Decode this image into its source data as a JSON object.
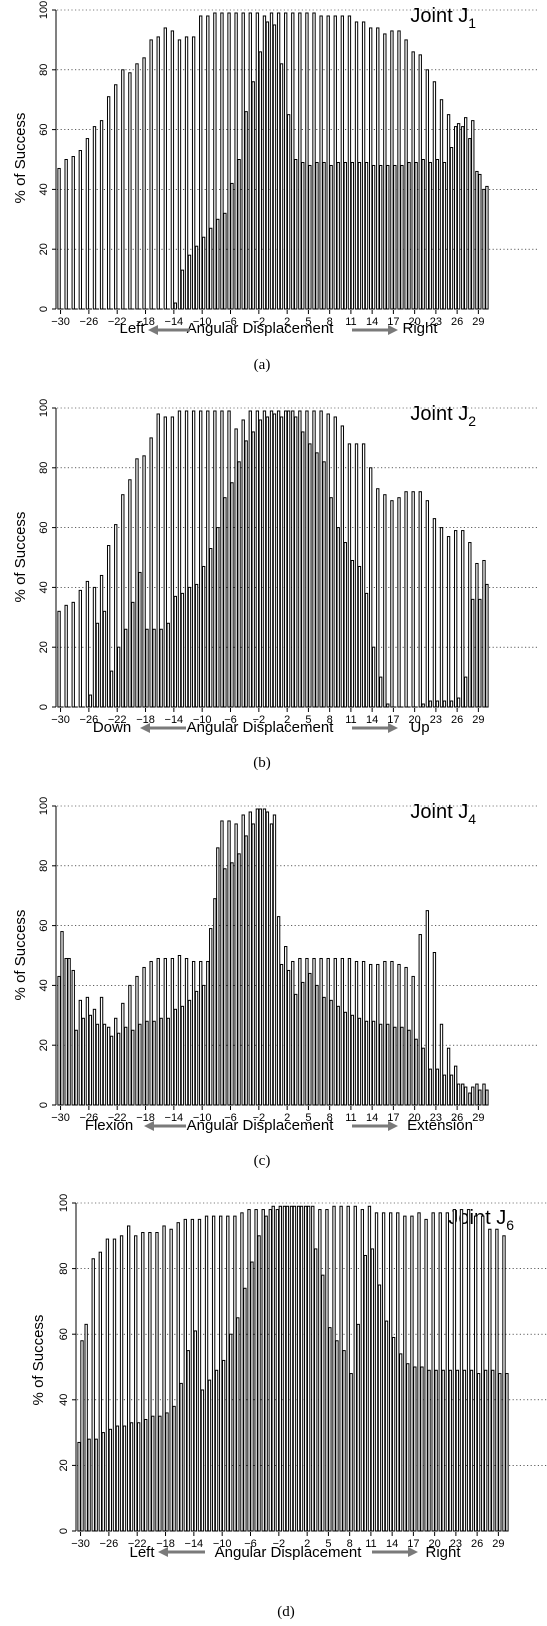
{
  "chart_data": [
    {
      "type": "bar",
      "caption": "(a)",
      "title": "Joint J",
      "title_sub": "1",
      "ylabel": "% of Success",
      "xlabel_left": "Left",
      "xlabel_center": "Angular Displacement",
      "xlabel_right": "Right",
      "ylim": [
        0,
        100
      ],
      "yticks": [
        0,
        20,
        40,
        60,
        80,
        100
      ],
      "x": [
        -30,
        -29,
        -28,
        -27,
        -26,
        -25,
        -24,
        -23,
        -22,
        -21,
        -20,
        -19,
        -18,
        -17,
        -16,
        -15,
        -14,
        -13,
        -12,
        -11,
        -10,
        -9,
        -8,
        -7,
        -6,
        -5,
        -4,
        -3,
        -2,
        -1,
        0,
        1,
        2,
        3,
        4,
        5,
        6,
        7,
        8,
        9,
        10,
        11,
        12,
        13,
        14,
        15,
        16,
        17,
        18,
        19,
        20,
        21,
        22,
        23,
        24,
        25,
        26,
        27,
        28,
        29,
        30
      ],
      "xtick_labels": [
        "-30",
        "-26",
        "-22",
        "-18",
        "-14",
        "-10",
        "-6",
        "-2",
        "2",
        "5",
        "8",
        "11",
        "14",
        "17",
        "20",
        "23",
        "26",
        "29"
      ],
      "series": [
        {
          "values": [
            47,
            50,
            51,
            53,
            57,
            61,
            63,
            71,
            75,
            80,
            79,
            82,
            84,
            90,
            91,
            94,
            93,
            90,
            91,
            91,
            98,
            98,
            99,
            99,
            99,
            99,
            99,
            99,
            99,
            98,
            99,
            99,
            99,
            99,
            99,
            99,
            99,
            98,
            98,
            98,
            98,
            98,
            96,
            96,
            94,
            94,
            92,
            93,
            93,
            90,
            86,
            85,
            80,
            76,
            70,
            65,
            61,
            61,
            57,
            46,
            40
          ]
        },
        {
          "values": [
            0,
            0,
            0,
            0,
            0,
            0,
            0,
            0,
            0,
            0,
            0,
            0,
            0,
            0,
            0,
            0,
            2,
            13,
            18,
            21,
            24,
            27,
            30,
            32,
            42,
            50,
            66,
            76,
            86,
            96,
            95,
            82,
            65,
            50,
            49,
            48,
            49,
            49,
            48,
            49,
            49,
            49,
            49,
            49,
            48,
            48,
            48,
            48,
            48,
            49,
            49,
            50,
            49,
            50,
            49,
            54,
            62,
            64,
            63,
            45,
            41
          ]
        }
      ]
    },
    {
      "type": "bar",
      "caption": "(b)",
      "title": "Joint J",
      "title_sub": "2",
      "ylabel": "% of Success",
      "xlabel_left": "Down",
      "xlabel_center": "Angular Displacement",
      "xlabel_right": "Up",
      "ylim": [
        0,
        100
      ],
      "yticks": [
        0,
        20,
        40,
        60,
        80,
        100
      ],
      "x": [
        -30,
        -29,
        -28,
        -27,
        -26,
        -25,
        -24,
        -23,
        -22,
        -21,
        -20,
        -19,
        -18,
        -17,
        -16,
        -15,
        -14,
        -13,
        -12,
        -11,
        -10,
        -9,
        -8,
        -7,
        -6,
        -5,
        -4,
        -3,
        -2,
        -1,
        0,
        1,
        2,
        3,
        4,
        5,
        6,
        7,
        8,
        9,
        10,
        11,
        12,
        13,
        14,
        15,
        16,
        17,
        18,
        19,
        20,
        21,
        22,
        23,
        24,
        25,
        26,
        27,
        28,
        29,
        30
      ],
      "xtick_labels": [
        "-30",
        "-26",
        "-22",
        "-18",
        "-14",
        "-10",
        "-6",
        "-2",
        "2",
        "5",
        "8",
        "11",
        "14",
        "17",
        "20",
        "23",
        "26",
        "29"
      ],
      "series": [
        {
          "values": [
            32,
            34,
            35,
            39,
            42,
            40,
            44,
            54,
            61,
            71,
            76,
            83,
            84,
            90,
            98,
            97,
            97,
            99,
            99,
            99,
            99,
            99,
            99,
            99,
            99,
            93,
            96,
            99,
            99,
            99,
            99,
            99,
            99,
            99,
            99,
            99,
            99,
            99,
            98,
            97,
            94,
            88,
            88,
            88,
            80,
            73,
            71,
            69,
            70,
            72,
            72,
            72,
            69,
            63,
            60,
            57,
            59,
            59,
            55,
            48,
            49
          ]
        },
        {
          "values": [
            0,
            0,
            0,
            0,
            4,
            28,
            32,
            12,
            20,
            26,
            35,
            45,
            26,
            26,
            26,
            28,
            37,
            38,
            40,
            41,
            47,
            53,
            60,
            70,
            75,
            82,
            89,
            92,
            96,
            97,
            98,
            97,
            99,
            97,
            92,
            88,
            85,
            82,
            70,
            60,
            55,
            49,
            47,
            38,
            20,
            10,
            1,
            0,
            0,
            0,
            0,
            1,
            2,
            2,
            2,
            2,
            3,
            10,
            36,
            36,
            41
          ]
        }
      ]
    },
    {
      "type": "bar",
      "caption": "(c)",
      "title": "Joint J",
      "title_sub": "4",
      "ylabel": "% of Success",
      "xlabel_left": "Flexion",
      "xlabel_center": "Angular Displacement",
      "xlabel_right": "Extension",
      "ylim": [
        0,
        100
      ],
      "yticks": [
        0,
        20,
        40,
        60,
        80,
        100
      ],
      "x": [
        -30,
        -29,
        -28,
        -27,
        -26,
        -25,
        -24,
        -23,
        -22,
        -21,
        -20,
        -19,
        -18,
        -17,
        -16,
        -15,
        -14,
        -13,
        -12,
        -11,
        -10,
        -9,
        -8,
        -7,
        -6,
        -5,
        -4,
        -3,
        -2,
        -1,
        0,
        1,
        2,
        3,
        4,
        5,
        6,
        7,
        8,
        9,
        10,
        11,
        12,
        13,
        14,
        15,
        16,
        17,
        18,
        19,
        20,
        21,
        22,
        23,
        24,
        25,
        26,
        27,
        28,
        29,
        30
      ],
      "xtick_labels": [
        "-30",
        "-26",
        "-22",
        "-18",
        "-14",
        "-10",
        "-6",
        "-2",
        "2",
        "5",
        "8",
        "11",
        "14",
        "17",
        "20",
        "23",
        "26",
        "29"
      ],
      "series": [
        {
          "values": [
            43,
            49,
            45,
            35,
            36,
            32,
            36,
            26,
            29,
            34,
            40,
            43,
            46,
            48,
            49,
            49,
            49,
            50,
            49,
            48,
            48,
            48,
            69,
            95,
            95,
            94,
            97,
            98,
            99,
            99,
            94,
            63,
            53,
            48,
            49,
            49,
            49,
            49,
            49,
            49,
            49,
            49,
            48,
            48,
            47,
            47,
            48,
            48,
            47,
            46,
            43,
            57,
            65,
            51,
            27,
            19,
            13,
            7,
            4,
            7,
            7
          ]
        },
        {
          "values": [
            58,
            49,
            25,
            29,
            30,
            27,
            27,
            23,
            24,
            26,
            25,
            27,
            28,
            28,
            29,
            29,
            32,
            33,
            35,
            38,
            40,
            59,
            86,
            79,
            81,
            84,
            90,
            94,
            99,
            98,
            97,
            47,
            45,
            37,
            41,
            44,
            40,
            36,
            35,
            33,
            31,
            30,
            29,
            28,
            28,
            27,
            27,
            26,
            26,
            25,
            22,
            19,
            12,
            12,
            10,
            10,
            7,
            6,
            6,
            5,
            5
          ]
        }
      ]
    },
    {
      "type": "bar",
      "caption": "(d)",
      "title": "Joint J",
      "title_sub": "6",
      "ylabel": "% of Success",
      "xlabel_left": "Left",
      "xlabel_center": "Angular Displacement",
      "xlabel_right": "Right",
      "ylim": [
        0,
        100
      ],
      "yticks": [
        0,
        20,
        40,
        60,
        80,
        100
      ],
      "x": [
        -30,
        -29,
        -28,
        -27,
        -26,
        -25,
        -24,
        -23,
        -22,
        -21,
        -20,
        -19,
        -18,
        -17,
        -16,
        -15,
        -14,
        -13,
        -12,
        -11,
        -10,
        -9,
        -8,
        -7,
        -6,
        -5,
        -4,
        -3,
        -2,
        -1,
        0,
        1,
        2,
        3,
        4,
        5,
        6,
        7,
        8,
        9,
        10,
        11,
        12,
        13,
        14,
        15,
        16,
        17,
        18,
        19,
        20,
        21,
        22,
        23,
        24,
        25,
        26,
        27,
        28,
        29,
        30
      ],
      "xtick_labels": [
        "-30",
        "-26",
        "-22",
        "-18",
        "-14",
        "-10",
        "-6",
        "-2",
        "2",
        "5",
        "8",
        "11",
        "14",
        "17",
        "20",
        "23",
        "26",
        "29"
      ],
      "series": [
        {
          "values": [
            27,
            63,
            83,
            85,
            89,
            89,
            90,
            93,
            90,
            91,
            91,
            91,
            93,
            92,
            94,
            95,
            95,
            95,
            96,
            96,
            96,
            96,
            96,
            97,
            98,
            98,
            98,
            98,
            98,
            99,
            99,
            99,
            99,
            99,
            98,
            98,
            99,
            99,
            99,
            99,
            98,
            99,
            97,
            97,
            97,
            97,
            96,
            96,
            97,
            95,
            97,
            97,
            97,
            98,
            98,
            98,
            96,
            96,
            92,
            92,
            90
          ]
        },
        {
          "values": [
            58,
            28,
            28,
            30,
            31,
            32,
            32,
            33,
            33,
            34,
            35,
            35,
            36,
            38,
            45,
            55,
            61,
            43,
            46,
            49,
            52,
            60,
            65,
            74,
            82,
            90,
            96,
            99,
            99,
            99,
            99,
            99,
            99,
            86,
            78,
            62,
            58,
            55,
            48,
            63,
            84,
            86,
            75,
            64,
            59,
            54,
            51,
            50,
            50,
            49,
            49,
            49,
            49,
            49,
            49,
            49,
            48,
            49,
            49,
            48,
            48
          ]
        }
      ]
    }
  ]
}
